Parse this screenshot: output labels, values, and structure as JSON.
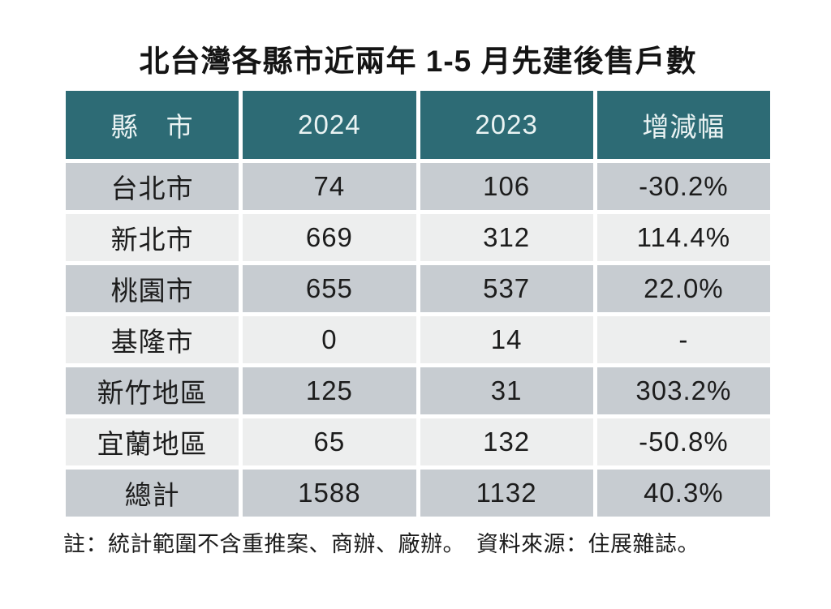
{
  "page": {
    "title": "北台灣各縣市近兩年 1-5 月先建後售戶數",
    "footnote": "註：統計範圍不含重推案、商辦、廠辦。　資料來源：住展雜誌。"
  },
  "table": {
    "columns": [
      "縣　市",
      "2024",
      "2023",
      "增減幅"
    ],
    "rows": [
      {
        "region": "台北市",
        "v2024": "74",
        "v2023": "106",
        "change": "-30.2%"
      },
      {
        "region": "新北市",
        "v2024": "669",
        "v2023": "312",
        "change": "114.4%"
      },
      {
        "region": "桃園市",
        "v2024": "655",
        "v2023": "537",
        "change": "22.0%"
      },
      {
        "region": "基隆市",
        "v2024": "0",
        "v2023": "14",
        "change": "-"
      },
      {
        "region": "新竹地區",
        "v2024": "125",
        "v2023": "31",
        "change": "303.2%"
      },
      {
        "region": "宜蘭地區",
        "v2024": "65",
        "v2023": "132",
        "change": "-50.8%"
      },
      {
        "region": "總計",
        "v2024": "1588",
        "v2023": "1132",
        "change": "40.3%"
      }
    ]
  },
  "colors": {
    "header_bg": "#2D6B75",
    "header_text": "#EAF3F3",
    "row_dark": "#C7CCD1",
    "row_light": "#EDEEEE",
    "cell_text": "#1C1C1C",
    "page_bg": "#FFFFFF"
  },
  "chart_data": {
    "type": "table",
    "title": "北台灣各縣市近兩年 1-5 月先建後售戶數",
    "columns": [
      "縣　市",
      "2024",
      "2023",
      "增減幅"
    ],
    "rows": [
      [
        "台北市",
        74,
        106,
        "-30.2%"
      ],
      [
        "新北市",
        669,
        312,
        "114.4%"
      ],
      [
        "桃園市",
        655,
        537,
        "22.0%"
      ],
      [
        "基隆市",
        0,
        14,
        "-"
      ],
      [
        "新竹地區",
        125,
        31,
        "303.2%"
      ],
      [
        "宜蘭地區",
        65,
        132,
        "-50.8%"
      ],
      [
        "總計",
        1588,
        1132,
        "40.3%"
      ]
    ],
    "note": "註：統計範圍不含重推案、商辦、廠辦。　資料來源：住展雜誌。",
    "layout_hints": {
      "header_style": "dark-teal with white text",
      "row_striping": "alternating gray / light-gray starting gray",
      "grid": "white 5px separators, no outer border"
    }
  }
}
